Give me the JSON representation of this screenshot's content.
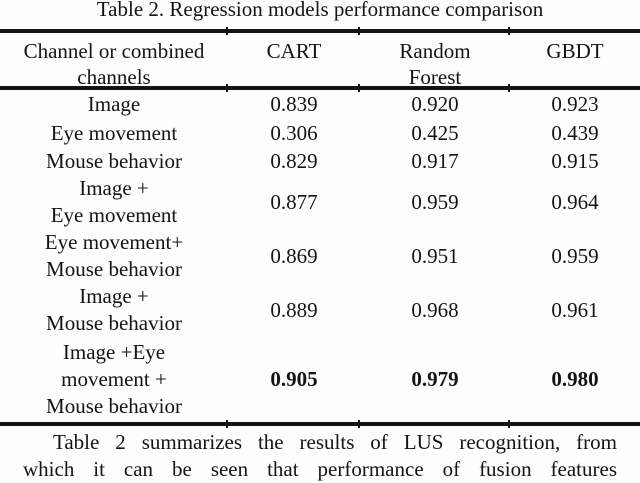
{
  "title": "Table 2. Regression models performance comparison",
  "table": {
    "headers": [
      "Channel or combined\nchannels",
      "CART",
      "Random\nForest",
      "GBDT"
    ],
    "rows": [
      {
        "channel": "Image",
        "cart": "0.839",
        "random_forest": "0.920",
        "gbdt": "0.923",
        "bold": false
      },
      {
        "channel": "Eye movement",
        "cart": "0.306",
        "random_forest": "0.425",
        "gbdt": "0.439",
        "bold": false
      },
      {
        "channel": "Mouse behavior",
        "cart": "0.829",
        "random_forest": "0.917",
        "gbdt": "0.915",
        "bold": false
      },
      {
        "channel": "Image +\nEye movement",
        "cart": "0.877",
        "random_forest": "0.959",
        "gbdt": "0.964",
        "bold": false
      },
      {
        "channel": "Eye movement+\nMouse behavior",
        "cart": "0.869",
        "random_forest": "0.951",
        "gbdt": "0.959",
        "bold": false
      },
      {
        "channel": "Image +\nMouse behavior",
        "cart": "0.889",
        "random_forest": "0.968",
        "gbdt": "0.961",
        "bold": false
      },
      {
        "channel": "Image +Eye\nmovement +\nMouse behavior",
        "cart": "0.905",
        "random_forest": "0.979",
        "gbdt": "0.980",
        "bold": true
      }
    ]
  },
  "body_text": {
    "lines": [
      "Table 2 summarizes the results of LUS recognition, from",
      "which it can be seen that performance of fusion features"
    ]
  },
  "colors": {
    "text": "#141414",
    "rule": "#141414",
    "background": "#fdfdfd"
  }
}
